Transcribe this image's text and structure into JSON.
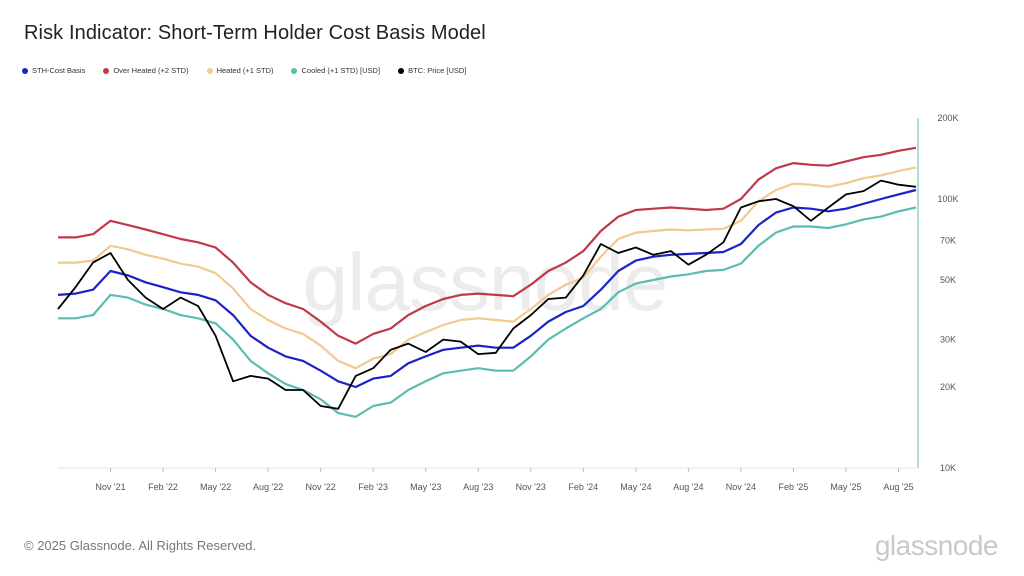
{
  "title": "Risk Indicator: Short-Term Holder Cost Basis Model",
  "footer": "© 2025 Glassnode. All Rights Reserved.",
  "brand": "glassnode",
  "watermark": "glassnode",
  "chart_data": {
    "type": "line",
    "title": "Risk Indicator: Short-Term Holder Cost Basis Model",
    "y_scale": "log",
    "ylim": [
      10000,
      200000
    ],
    "y_ticks": [
      {
        "value": 10000,
        "label": "10K"
      },
      {
        "value": 20000,
        "label": "20K"
      },
      {
        "value": 30000,
        "label": "30K"
      },
      {
        "value": 50000,
        "label": "50K"
      },
      {
        "value": 70000,
        "label": "70K"
      },
      {
        "value": 100000,
        "label": "100K"
      },
      {
        "value": 200000,
        "label": "200K"
      }
    ],
    "x_ticks": [
      {
        "value": "2021-11",
        "label": "Nov '21"
      },
      {
        "value": "2022-02",
        "label": "Feb '22"
      },
      {
        "value": "2022-05",
        "label": "May '22"
      },
      {
        "value": "2022-08",
        "label": "Aug '22"
      },
      {
        "value": "2022-11",
        "label": "Nov '22"
      },
      {
        "value": "2023-02",
        "label": "Feb '23"
      },
      {
        "value": "2023-05",
        "label": "May '23"
      },
      {
        "value": "2023-08",
        "label": "Aug '23"
      },
      {
        "value": "2023-11",
        "label": "Nov '23"
      },
      {
        "value": "2024-02",
        "label": "Feb '24"
      },
      {
        "value": "2024-05",
        "label": "May '24"
      },
      {
        "value": "2024-08",
        "label": "Aug '24"
      },
      {
        "value": "2024-11",
        "label": "Nov '24"
      },
      {
        "value": "2025-02",
        "label": "Feb '25"
      },
      {
        "value": "2025-05",
        "label": "May '25"
      },
      {
        "value": "2025-08",
        "label": "Aug '25"
      }
    ],
    "xlim": [
      "2021-08",
      "2025-09"
    ],
    "legend_position": "top-left",
    "grid": false,
    "x": [
      "2021-08",
      "2021-09",
      "2021-10",
      "2021-11",
      "2021-12",
      "2022-01",
      "2022-02",
      "2022-03",
      "2022-04",
      "2022-05",
      "2022-06",
      "2022-07",
      "2022-08",
      "2022-09",
      "2022-10",
      "2022-11",
      "2022-12",
      "2023-01",
      "2023-02",
      "2023-03",
      "2023-04",
      "2023-05",
      "2023-06",
      "2023-07",
      "2023-08",
      "2023-09",
      "2023-10",
      "2023-11",
      "2023-12",
      "2024-01",
      "2024-02",
      "2024-03",
      "2024-04",
      "2024-05",
      "2024-06",
      "2024-07",
      "2024-08",
      "2024-09",
      "2024-10",
      "2024-11",
      "2024-12",
      "2025-01",
      "2025-02",
      "2025-03",
      "2025-04",
      "2025-05",
      "2025-06",
      "2025-07",
      "2025-08",
      "2025-09"
    ],
    "series": [
      {
        "name": "STH-Cost Basis",
        "color": "#1a22c8",
        "values": [
          44000,
          44500,
          46000,
          54000,
          52000,
          49000,
          47000,
          45000,
          44000,
          42000,
          37000,
          31000,
          28000,
          26000,
          25000,
          23000,
          21000,
          20000,
          21500,
          22000,
          24500,
          26000,
          27500,
          28000,
          28500,
          28000,
          28000,
          31000,
          35000,
          38000,
          40000,
          46000,
          54000,
          59000,
          61000,
          62000,
          62500,
          63000,
          63500,
          68000,
          80000,
          89000,
          93000,
          92000,
          90000,
          92000,
          96000,
          100000,
          104000,
          108000
        ]
      },
      {
        "name": "Over Heated (+2 STD)",
        "color": "#c0394b",
        "values": [
          72000,
          72000,
          74000,
          83000,
          80000,
          77000,
          74000,
          71000,
          69000,
          66000,
          58000,
          49000,
          44000,
          41000,
          39000,
          35000,
          31000,
          29000,
          31500,
          33000,
          37000,
          40000,
          42500,
          44000,
          44500,
          44000,
          43500,
          48000,
          54000,
          58000,
          64000,
          76000,
          86000,
          91000,
          92000,
          93000,
          92000,
          91000,
          92000,
          100000,
          118000,
          130000,
          136000,
          134000,
          133000,
          138000,
          143000,
          146000,
          151000,
          155000
        ]
      },
      {
        "name": "Heated (+1 STD)",
        "color": "#f2c98e",
        "values": [
          58000,
          58000,
          59000,
          67000,
          65000,
          62000,
          60000,
          57500,
          56000,
          53000,
          46500,
          39000,
          35500,
          33000,
          31500,
          28500,
          25000,
          23500,
          25500,
          26500,
          30000,
          32000,
          34000,
          35500,
          36000,
          35500,
          35000,
          39000,
          44000,
          48000,
          51000,
          61000,
          71000,
          75000,
          76000,
          77000,
          76500,
          77000,
          77500,
          83000,
          98000,
          108000,
          114000,
          113000,
          111000,
          114500,
          119500,
          122500,
          127000,
          131000
        ]
      },
      {
        "name": "Cooled (+1 STD) [USD]",
        "color": "#5bbcb0",
        "values": [
          36000,
          36000,
          37000,
          44000,
          43000,
          40500,
          39000,
          37000,
          36000,
          34500,
          30000,
          25000,
          22500,
          20500,
          19500,
          18000,
          16000,
          15500,
          17000,
          17500,
          19500,
          21000,
          22500,
          23000,
          23500,
          23000,
          23000,
          26000,
          30000,
          33000,
          36000,
          39000,
          45000,
          48500,
          50000,
          51500,
          52500,
          54000,
          54500,
          57500,
          67000,
          75000,
          79000,
          79000,
          78000,
          80500,
          84000,
          86000,
          90000,
          93000
        ]
      },
      {
        "name": "BTC: Price [USD]",
        "color": "#000000",
        "values": [
          39000,
          47000,
          58000,
          63000,
          50000,
          43000,
          39000,
          43000,
          40000,
          31000,
          21000,
          22000,
          21500,
          19500,
          19500,
          17000,
          16600,
          22000,
          23500,
          27500,
          29000,
          27000,
          30000,
          29500,
          26500,
          26800,
          33000,
          37000,
          42500,
          43000,
          52000,
          68000,
          63000,
          66000,
          62000,
          64000,
          57000,
          62000,
          69000,
          93000,
          98000,
          100000,
          94000,
          83000,
          93000,
          104000,
          107000,
          117000,
          113000,
          111000
        ]
      }
    ]
  }
}
